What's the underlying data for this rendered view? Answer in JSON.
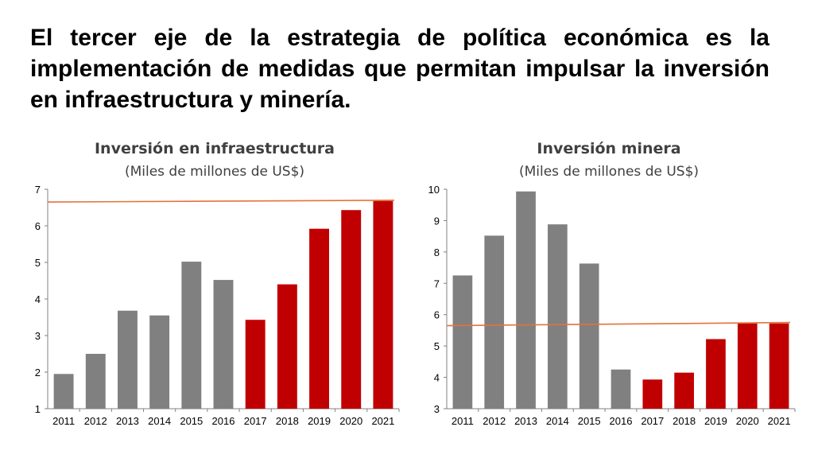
{
  "headline": "El tercer eje de la estrategia de política económica es la implementación de medidas que permitan impulsar la inversión en infraestructura y minería.",
  "colors": {
    "past": "#808080",
    "future": "#C00000",
    "line": "#E2733A",
    "axis": "#808080"
  },
  "chart_data": [
    {
      "type": "bar",
      "title": "Inversión en infraestructura",
      "subtitle": "(Miles de millones de US$)",
      "categories": [
        "2011",
        "2012",
        "2013",
        "2014",
        "2015",
        "2016",
        "2017",
        "2018",
        "2019",
        "2020",
        "2021"
      ],
      "values": [
        1.95,
        2.5,
        3.68,
        3.55,
        5.02,
        4.52,
        3.43,
        4.4,
        5.92,
        6.43,
        6.68
      ],
      "highlight_from_index": 6,
      "ylim": [
        1,
        7
      ],
      "yticks": [
        1,
        2,
        3,
        4,
        5,
        6,
        7
      ],
      "reference_line": [
        6.65,
        6.7
      ],
      "xlabel": "",
      "ylabel": ""
    },
    {
      "type": "bar",
      "title": "Inversión minera",
      "subtitle": "(Miles de millones de US$)",
      "categories": [
        "2011",
        "2012",
        "2013",
        "2014",
        "2015",
        "2016",
        "2017",
        "2018",
        "2019",
        "2020",
        "2021"
      ],
      "values": [
        7.25,
        8.52,
        9.93,
        8.88,
        7.63,
        4.25,
        3.93,
        4.15,
        5.22,
        5.72,
        5.72
      ],
      "highlight_from_index": 6,
      "ylim": [
        3,
        10
      ],
      "yticks": [
        3,
        4,
        5,
        6,
        7,
        8,
        9,
        10
      ],
      "reference_line": [
        5.65,
        5.75
      ],
      "xlabel": "",
      "ylabel": ""
    }
  ]
}
